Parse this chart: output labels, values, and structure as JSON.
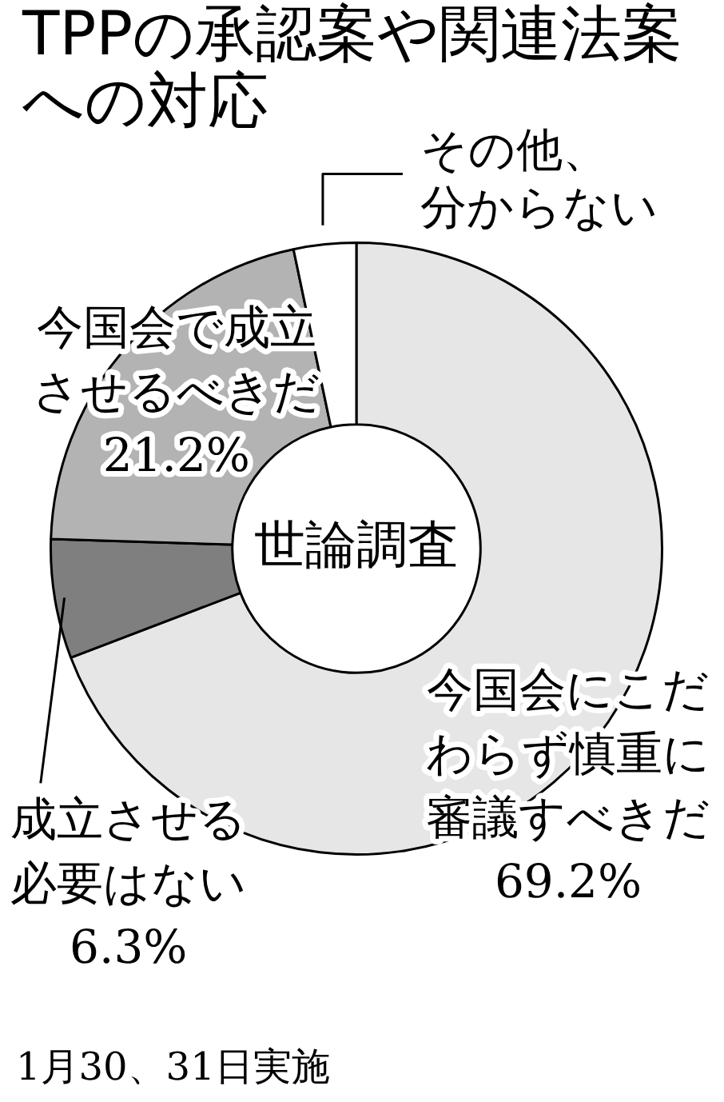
{
  "chart_data": {
    "type": "donut",
    "title": "TPPの承認案や関連法案への対応",
    "categories": [
      "今国会にこだわらず慎重に審議すべきだ",
      "成立させる必要はない",
      "今国会で成立させるべきだ",
      "その他、分からない"
    ],
    "values": [
      69.2,
      6.3,
      21.2,
      3.3
    ],
    "colors": [
      "#e6e6e6",
      "#7f7f7f",
      "#b3b3b3",
      "#ffffff"
    ],
    "value_labels": [
      "69.2%",
      "6.3%",
      "21.2%",
      null
    ],
    "annotations": [
      "世論調査",
      "1月30、31日実施"
    ]
  }
}
